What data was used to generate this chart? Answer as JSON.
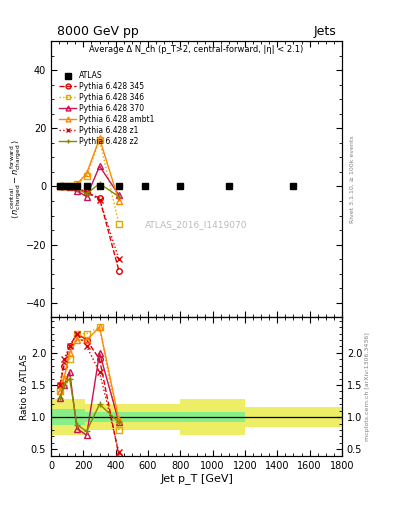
{
  "title_top": "8000 GeV pp",
  "title_right": "Jets",
  "annotation": "Average Δ N_ch (p_T>2, central-forward, |η| < 2.1)",
  "watermark": "ATLAS_2016_I1419070",
  "rivet_label": "Rivet 3.1.10, ≥ 100k events",
  "mcplots_label": "mcplots.cern.ch [arXiv:1306.3436]",
  "ylabel_ratio": "Ratio to ATLAS",
  "xlabel": "Jet p_T [GeV]",
  "xlim": [
    0,
    1800
  ],
  "ylim_main": [
    -45,
    50
  ],
  "ylim_ratio": [
    0.4,
    2.55
  ],
  "yticks_main": [
    -40,
    -20,
    0,
    20,
    40
  ],
  "yticks_ratio": [
    0.5,
    1.0,
    1.5,
    2.0
  ],
  "atlas_x": [
    55,
    80,
    115,
    160,
    220,
    300,
    420,
    580,
    800,
    1100,
    1500
  ],
  "atlas_y": [
    0,
    0,
    0,
    0,
    0,
    0,
    0,
    0,
    0,
    0,
    0
  ],
  "series": [
    {
      "label": "Pythia 6.428 345",
      "color": "#dd0000",
      "linestyle": "dashed",
      "marker": "o",
      "x": [
        55,
        80,
        115,
        160,
        220,
        300,
        420
      ],
      "y": [
        0.0,
        0.0,
        -0.2,
        -0.5,
        -2.0,
        -4.0,
        -29.0
      ]
    },
    {
      "label": "Pythia 6.428 346",
      "color": "#ddaa00",
      "linestyle": "dotted",
      "marker": "s",
      "x": [
        55,
        80,
        115,
        160,
        220,
        300,
        420
      ],
      "y": [
        0.0,
        0.1,
        0.3,
        1.0,
        3.5,
        16.0,
        -13.0
      ]
    },
    {
      "label": "Pythia 6.428 370",
      "color": "#cc1155",
      "linestyle": "solid",
      "marker": "^",
      "x": [
        55,
        80,
        115,
        160,
        220,
        300,
        420
      ],
      "y": [
        0.0,
        0.0,
        -0.1,
        -1.5,
        -3.5,
        7.0,
        -3.0
      ]
    },
    {
      "label": "Pythia 6.428 ambt1",
      "color": "#ff8800",
      "linestyle": "solid",
      "marker": "^",
      "x": [
        55,
        80,
        115,
        160,
        220,
        300,
        420
      ],
      "y": [
        0.0,
        0.1,
        0.2,
        0.8,
        4.5,
        16.5,
        -5.0
      ]
    },
    {
      "label": "Pythia 6.428 z1",
      "color": "#dd0000",
      "linestyle": "dotted",
      "marker": "x",
      "x": [
        55,
        80,
        115,
        160,
        220,
        300,
        420
      ],
      "y": [
        0.0,
        0.0,
        -0.2,
        -0.5,
        -2.0,
        -4.5,
        -25.0
      ]
    },
    {
      "label": "Pythia 6.428 z2",
      "color": "#888800",
      "linestyle": "solid",
      "marker": "+",
      "x": [
        55,
        80,
        115,
        160,
        220,
        300,
        420
      ],
      "y": [
        0.0,
        0.0,
        -0.1,
        -0.8,
        -2.5,
        1.0,
        -3.5
      ]
    }
  ],
  "green_x_edges": [
    0,
    100,
    210,
    310,
    1200,
    1800
  ],
  "green_lo": [
    0.88,
    0.88,
    0.92,
    0.92,
    1.0,
    1.0
  ],
  "green_hi": [
    1.12,
    1.12,
    1.08,
    1.08,
    1.0,
    1.0
  ],
  "yellow_x_edges": [
    0,
    100,
    210,
    310,
    800,
    1200,
    1800
  ],
  "yellow_lo": [
    0.72,
    0.72,
    0.8,
    0.8,
    0.72,
    0.85,
    0.85
  ],
  "yellow_hi": [
    1.28,
    1.28,
    1.2,
    1.2,
    1.28,
    1.15,
    1.15
  ],
  "ratio_series": [
    {
      "label": "Pythia 6.428 345",
      "color": "#dd0000",
      "linestyle": "dashed",
      "marker": "o",
      "x": [
        55,
        80,
        115,
        160,
        220,
        300,
        420
      ],
      "y": [
        1.5,
        1.8,
        2.1,
        2.3,
        2.2,
        1.9,
        0.4
      ]
    },
    {
      "label": "Pythia 6.428 346",
      "color": "#ddaa00",
      "linestyle": "dotted",
      "marker": "s",
      "x": [
        55,
        80,
        115,
        160,
        220,
        300,
        420
      ],
      "y": [
        1.4,
        1.6,
        1.9,
        2.3,
        2.3,
        2.4,
        0.8
      ]
    },
    {
      "label": "Pythia 6.428 370",
      "color": "#cc1155",
      "linestyle": "solid",
      "marker": "^",
      "x": [
        55,
        80,
        115,
        160,
        220,
        300,
        420
      ],
      "y": [
        1.3,
        1.5,
        1.7,
        0.82,
        0.72,
        2.0,
        0.92
      ]
    },
    {
      "label": "Pythia 6.428 ambt1",
      "color": "#ff8800",
      "linestyle": "solid",
      "marker": "^",
      "x": [
        55,
        80,
        115,
        160,
        220,
        300,
        420
      ],
      "y": [
        1.4,
        1.6,
        2.0,
        2.2,
        2.2,
        2.4,
        0.95
      ]
    },
    {
      "label": "Pythia 6.428 z1",
      "color": "#dd0000",
      "linestyle": "dotted",
      "marker": "x",
      "x": [
        55,
        80,
        115,
        160,
        220,
        300,
        420
      ],
      "y": [
        1.5,
        1.9,
        2.1,
        2.3,
        2.1,
        1.7,
        0.45
      ]
    },
    {
      "label": "Pythia 6.428 z2",
      "color": "#888800",
      "linestyle": "solid",
      "marker": "+",
      "x": [
        55,
        80,
        115,
        160,
        220,
        300,
        420
      ],
      "y": [
        1.3,
        1.5,
        1.6,
        0.88,
        0.78,
        1.2,
        0.92
      ]
    }
  ],
  "bg_color": "#ffffff",
  "green_color": "#88ee88",
  "yellow_color": "#eeee66"
}
